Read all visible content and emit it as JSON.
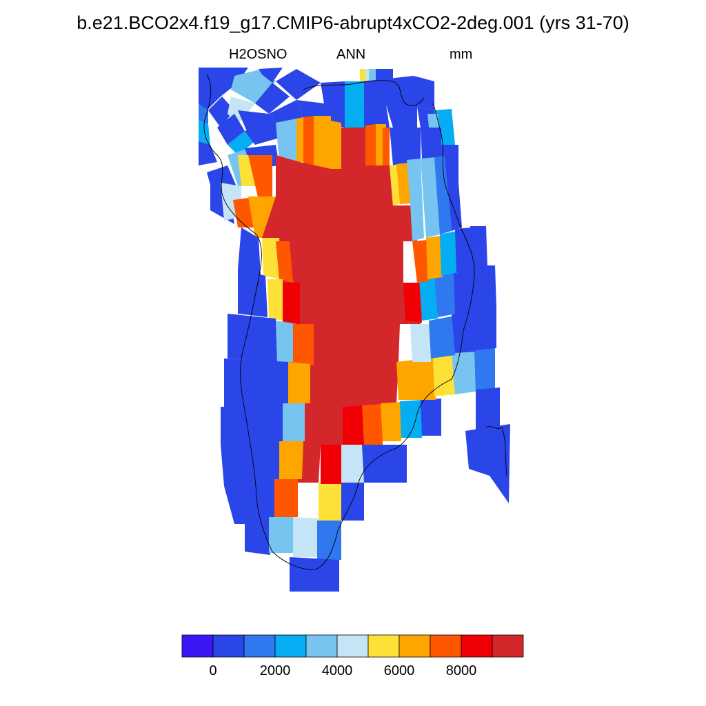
{
  "title": "b.e21.BCO2x4.f19_g17.CMIP6-abrupt4xCO2-2deg.001 (yrs 31-70)",
  "subtitle": {
    "variable": "H2OSNO",
    "season": "ANN",
    "units": "mm"
  },
  "colors": [
    "#3d16f5",
    "#2a45e8",
    "#2f78ef",
    "#05adf3",
    "#76c4ef",
    "#c5e4f5",
    "#fde136",
    "#fea500",
    "#fe5700",
    "#f00005",
    "#d3272b"
  ],
  "colorbar": {
    "labels": [
      {
        "text": "0",
        "index": 1
      },
      {
        "text": "2000",
        "index": 3
      },
      {
        "text": "4000",
        "index": 5
      },
      {
        "text": "6000",
        "index": 7
      },
      {
        "text": "8000",
        "index": 9
      }
    ]
  }
}
